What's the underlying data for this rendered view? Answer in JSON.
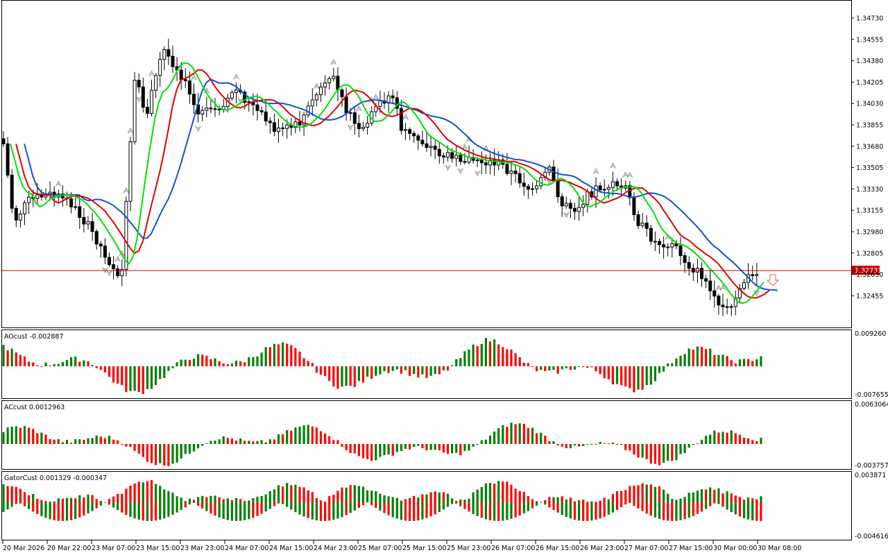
{
  "chart_data": [
    {
      "type": "candlestick",
      "symbol_price_line": "1.32733",
      "y_ticks": [
        "1.34730",
        "1.34555",
        "1.34380",
        "1.34205",
        "1.34030",
        "1.33855",
        "1.33680",
        "1.33505",
        "1.33330",
        "1.33155",
        "1.32980",
        "1.32805",
        "1.32630",
        "1.32455"
      ],
      "ylim": [
        1.3227,
        1.3489
      ],
      "current_price": 1.32733,
      "colors": {
        "bull": "#ffffff",
        "bear": "#000000",
        "ma_fast": "#00e000",
        "ma_mid": "#e00000",
        "ma_slow": "#1050d0",
        "price_line": "#c00000",
        "fractal": "#a0a0a0"
      }
    },
    {
      "type": "bar",
      "label": "AOcust -0.002887",
      "y_ticks": [
        "0.009260",
        "-0.007655"
      ],
      "colors": {
        "up": "#008000",
        "down": "#ff0000"
      }
    },
    {
      "type": "bar",
      "label": "ACcust 0.0012963",
      "y_ticks": [
        "0.0063064",
        "-0.0037574"
      ],
      "colors": {
        "up": "#008000",
        "down": "#ff0000"
      }
    },
    {
      "type": "bar",
      "label": "GatorCust 0.001329 -0.000347",
      "y_ticks": [
        "0.003871",
        "-0.004616"
      ],
      "colors": {
        "up": "#008000",
        "down": "#ff0000"
      }
    }
  ],
  "x_ticks": [
    "20 Mar 2026",
    "20 Mar 22:00",
    "23 Mar 07:00",
    "23 Mar 15:00",
    "23 Mar 23:00",
    "24 Mar 07:00",
    "24 Mar 15:00",
    "24 Mar 23:00",
    "25 Mar 07:00",
    "25 Mar 15:00",
    "25 Mar 23:00",
    "26 Mar 07:00",
    "26 Mar 15:00",
    "26 Mar 23:00",
    "27 Mar 07:00",
    "27 Mar 15:00",
    "30 Mar 00:00",
    "30 Mar 08:00"
  ]
}
